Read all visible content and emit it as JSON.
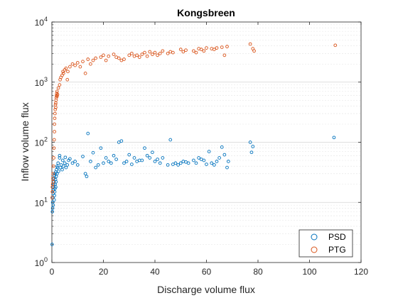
{
  "chart_data": {
    "type": "scatter",
    "title": "Kongsbreen",
    "xlabel": "Discharge volume flux",
    "ylabel": "Inflow volume flux",
    "xlim": [
      0,
      120
    ],
    "ylim": [
      1,
      10000
    ],
    "yscale": "log",
    "x_ticks": [
      0,
      20,
      40,
      60,
      80,
      100,
      120
    ],
    "y_ticks": [
      1,
      10,
      100,
      1000,
      10000
    ],
    "y_tick_labels": [
      "10^0",
      "10^1",
      "10^2",
      "10^3",
      "10^4"
    ],
    "grid": "y-major-and-minor",
    "legend_position": "bottom-right",
    "series": [
      {
        "name": "PSD",
        "color": "#0072BD",
        "marker": "circle-open",
        "points": [
          [
            0.1,
            2.0
          ],
          [
            0.2,
            7
          ],
          [
            0.3,
            8
          ],
          [
            0.3,
            10
          ],
          [
            0.4,
            12
          ],
          [
            0.5,
            9
          ],
          [
            0.5,
            14
          ],
          [
            0.6,
            16
          ],
          [
            0.6,
            18
          ],
          [
            0.7,
            20
          ],
          [
            0.8,
            22
          ],
          [
            0.8,
            25
          ],
          [
            0.9,
            11
          ],
          [
            1.0,
            13
          ],
          [
            1.0,
            28
          ],
          [
            1.1,
            15
          ],
          [
            1.2,
            17
          ],
          [
            1.2,
            30
          ],
          [
            1.3,
            20
          ],
          [
            1.4,
            24
          ],
          [
            1.5,
            18
          ],
          [
            1.5,
            32
          ],
          [
            1.6,
            22
          ],
          [
            1.7,
            27
          ],
          [
            1.8,
            35
          ],
          [
            2.0,
            30
          ],
          [
            2.0,
            40
          ],
          [
            2.2,
            38
          ],
          [
            2.4,
            45
          ],
          [
            2.6,
            33
          ],
          [
            3.0,
            55
          ],
          [
            3.0,
            60
          ],
          [
            3.3,
            38
          ],
          [
            3.6,
            42
          ],
          [
            4.0,
            35
          ],
          [
            4.2,
            50
          ],
          [
            4.5,
            40
          ],
          [
            5.0,
            45
          ],
          [
            5.2,
            56
          ],
          [
            5.5,
            38
          ],
          [
            6.0,
            42
          ],
          [
            6.5,
            50
          ],
          [
            7.0,
            53
          ],
          [
            8.0,
            45
          ],
          [
            9.0,
            48
          ],
          [
            10.0,
            42
          ],
          [
            12.0,
            58
          ],
          [
            13.0,
            30
          ],
          [
            13.5,
            27
          ],
          [
            14.0,
            140
          ],
          [
            15.0,
            48
          ],
          [
            16.0,
            67
          ],
          [
            17.0,
            38
          ],
          [
            18.0,
            42
          ],
          [
            19.0,
            80
          ],
          [
            20.0,
            45
          ],
          [
            21.0,
            55
          ],
          [
            22.0,
            48
          ],
          [
            23.0,
            45
          ],
          [
            24.0,
            60
          ],
          [
            25.0,
            52
          ],
          [
            26.0,
            100
          ],
          [
            27.0,
            105
          ],
          [
            28.0,
            45
          ],
          [
            29.0,
            48
          ],
          [
            30.0,
            62
          ],
          [
            31.0,
            43
          ],
          [
            32.0,
            55
          ],
          [
            33.0,
            48
          ],
          [
            34.0,
            50
          ],
          [
            35.0,
            50
          ],
          [
            36.0,
            80
          ],
          [
            37.0,
            60
          ],
          [
            38.0,
            55
          ],
          [
            39.0,
            68
          ],
          [
            40.0,
            48
          ],
          [
            41.0,
            52
          ],
          [
            42.0,
            45
          ],
          [
            43.0,
            55
          ],
          [
            45.0,
            42
          ],
          [
            46.0,
            110
          ],
          [
            47.0,
            43
          ],
          [
            48.0,
            45
          ],
          [
            49.0,
            42
          ],
          [
            50.0,
            45
          ],
          [
            51.0,
            48
          ],
          [
            52.0,
            47
          ],
          [
            53.0,
            45
          ],
          [
            55.0,
            50
          ],
          [
            56.0,
            45
          ],
          [
            57.0,
            55
          ],
          [
            58.0,
            52
          ],
          [
            59.0,
            50
          ],
          [
            60.0,
            43
          ],
          [
            61.0,
            70
          ],
          [
            62.0,
            45
          ],
          [
            63.0,
            42
          ],
          [
            64.0,
            48
          ],
          [
            65.0,
            55
          ],
          [
            66.0,
            83
          ],
          [
            67.0,
            62
          ],
          [
            68.0,
            38
          ],
          [
            68.5,
            48
          ],
          [
            77.0,
            100
          ],
          [
            77.5,
            68
          ],
          [
            78.0,
            85
          ],
          [
            109.5,
            120
          ]
        ]
      },
      {
        "name": "PTG",
        "color": "#D95319",
        "marker": "circle-open",
        "points": [
          [
            0.1,
            12
          ],
          [
            0.2,
            15
          ],
          [
            0.2,
            18
          ],
          [
            0.3,
            20
          ],
          [
            0.4,
            25
          ],
          [
            0.5,
            30
          ],
          [
            0.5,
            22
          ],
          [
            0.6,
            40
          ],
          [
            0.7,
            55
          ],
          [
            0.8,
            80
          ],
          [
            0.9,
            110
          ],
          [
            1.0,
            150
          ],
          [
            1.0,
            200
          ],
          [
            1.1,
            250
          ],
          [
            1.2,
            300
          ],
          [
            1.3,
            350
          ],
          [
            1.4,
            420
          ],
          [
            1.5,
            450
          ],
          [
            1.5,
            380
          ],
          [
            1.6,
            500
          ],
          [
            1.7,
            550
          ],
          [
            1.8,
            600
          ],
          [
            1.9,
            650
          ],
          [
            2.0,
            700
          ],
          [
            2.0,
            580
          ],
          [
            2.2,
            620
          ],
          [
            2.5,
            800
          ],
          [
            3.0,
            900
          ],
          [
            3.2,
            1100
          ],
          [
            3.5,
            1200
          ],
          [
            4.0,
            1300
          ],
          [
            4.3,
            1500
          ],
          [
            4.5,
            1400
          ],
          [
            5.0,
            1600
          ],
          [
            5.5,
            1700
          ],
          [
            6.0,
            1100
          ],
          [
            6.2,
            1500
          ],
          [
            7.0,
            1800
          ],
          [
            8.0,
            2000
          ],
          [
            9.0,
            1900
          ],
          [
            10.0,
            2100
          ],
          [
            11.0,
            1800
          ],
          [
            12.0,
            2200
          ],
          [
            13.0,
            1400
          ],
          [
            14.0,
            2400
          ],
          [
            15.0,
            2000
          ],
          [
            16.0,
            2300
          ],
          [
            17.0,
            2500
          ],
          [
            19.0,
            2600
          ],
          [
            20.0,
            2800
          ],
          [
            21.0,
            2300
          ],
          [
            22.0,
            2700
          ],
          [
            24.0,
            2900
          ],
          [
            25.0,
            2600
          ],
          [
            26.0,
            2500
          ],
          [
            27.0,
            2300
          ],
          [
            28.0,
            2400
          ],
          [
            30.0,
            2800
          ],
          [
            31.0,
            3000
          ],
          [
            32.0,
            2700
          ],
          [
            33.0,
            2800
          ],
          [
            34.0,
            2600
          ],
          [
            35.0,
            2900
          ],
          [
            36.0,
            3100
          ],
          [
            37.0,
            2700
          ],
          [
            38.0,
            3200
          ],
          [
            39.0,
            2900
          ],
          [
            40.0,
            3100
          ],
          [
            41.0,
            2800
          ],
          [
            42.0,
            3000
          ],
          [
            43.0,
            3300
          ],
          [
            45.0,
            3000
          ],
          [
            46.0,
            3200
          ],
          [
            47.0,
            3100
          ],
          [
            50.0,
            3500
          ],
          [
            51.0,
            3200
          ],
          [
            52.0,
            3400
          ],
          [
            55.0,
            3300
          ],
          [
            56.0,
            3100
          ],
          [
            57.0,
            3600
          ],
          [
            58.0,
            3500
          ],
          [
            59.0,
            3300
          ],
          [
            60.0,
            3700
          ],
          [
            62.0,
            3600
          ],
          [
            63.0,
            3500
          ],
          [
            64.0,
            3700
          ],
          [
            66.0,
            3800
          ],
          [
            67.0,
            2800
          ],
          [
            68.0,
            3900
          ],
          [
            77.0,
            4300
          ],
          [
            78.0,
            3600
          ],
          [
            78.5,
            3300
          ],
          [
            110.0,
            4100
          ]
        ]
      }
    ]
  }
}
